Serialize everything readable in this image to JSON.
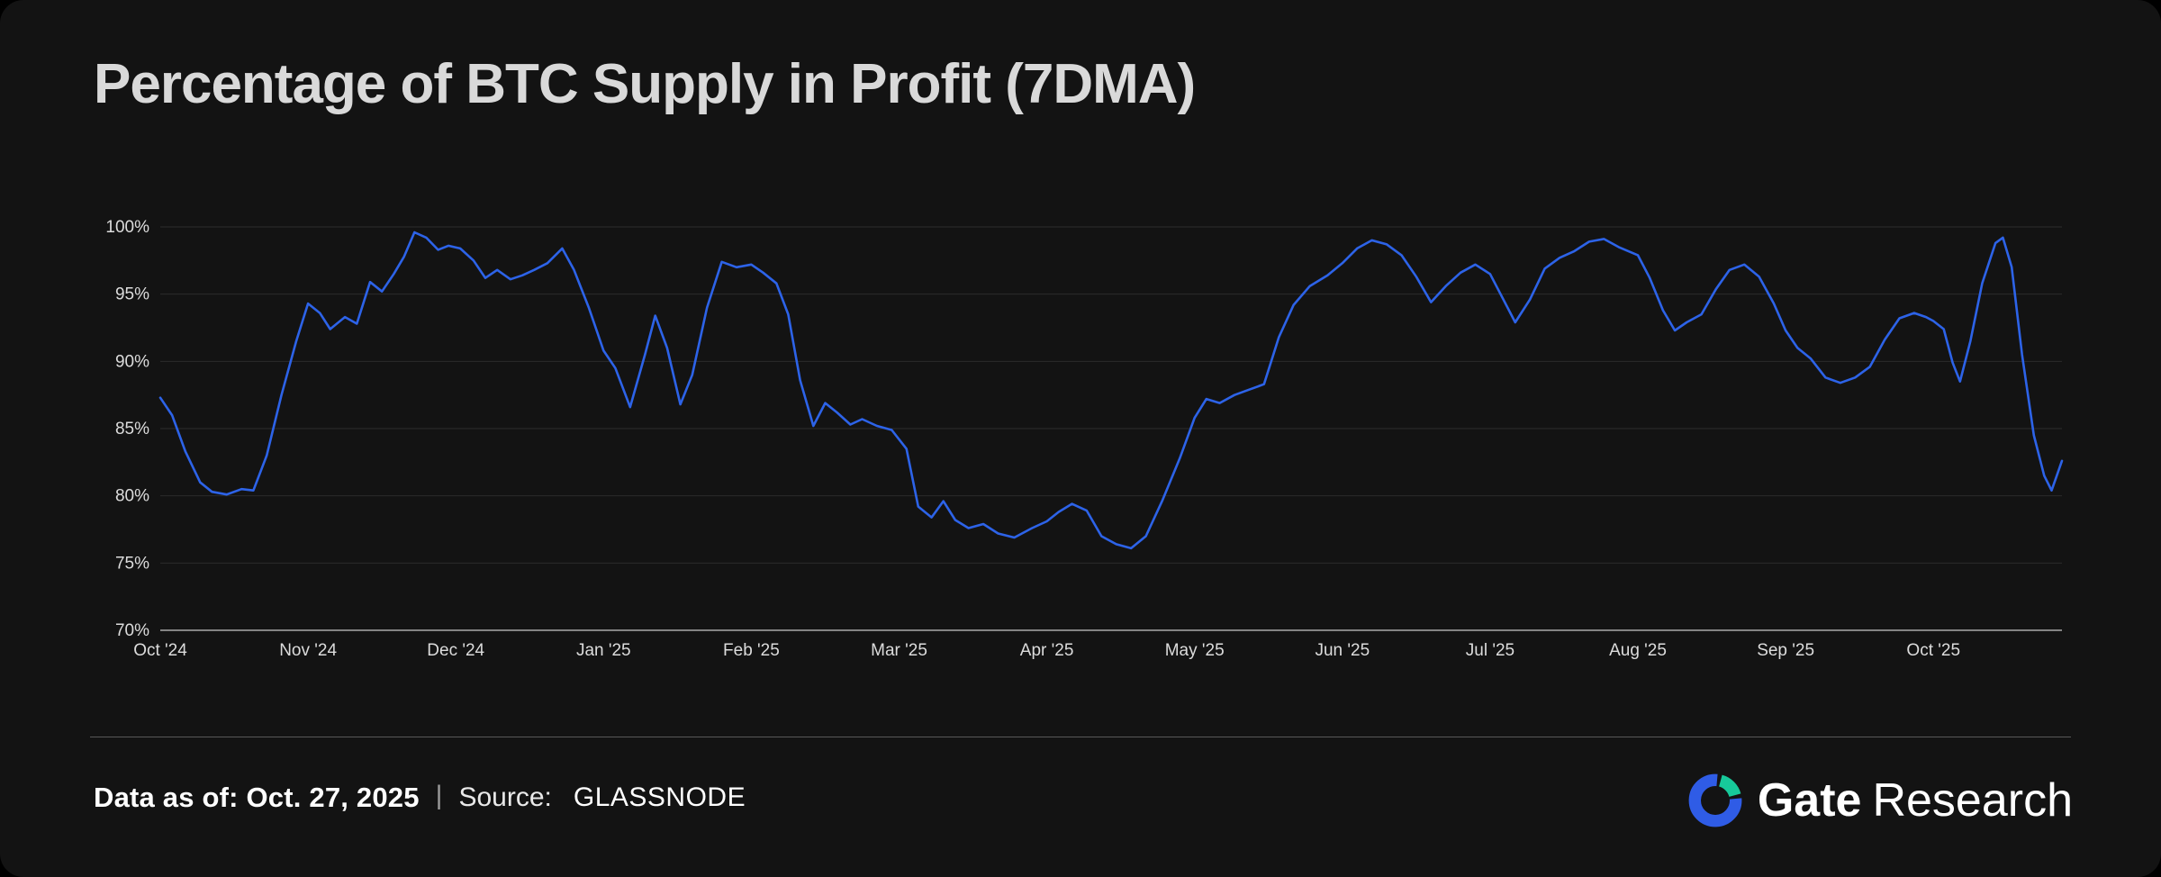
{
  "title": "Percentage of BTC Supply in Profit (7DMA)",
  "footer": {
    "data_as_of": "Data as of: Oct. 27, 2025",
    "separator": "|",
    "source_label": "Source:",
    "source_value": "GLASSNODE"
  },
  "branding": {
    "name_bold": "Gate",
    "name_light": "Research"
  },
  "colors": {
    "background": "#131313",
    "line": "#2d63e8",
    "grid": "#2c2c2c",
    "axis": "#aaaaaa",
    "tick_text": "#dcdcdc",
    "title_text": "#d9d9d9",
    "logo_blue": "#2f5ce6",
    "logo_green": "#17c99a"
  },
  "chart_data": {
    "type": "line",
    "title": "Percentage of BTC Supply in Profit (7DMA)",
    "xlabel": "",
    "ylabel": "",
    "x_unit": "months since Oct 1 2024",
    "xlim": [
      0,
      12.87
    ],
    "ylim": [
      70,
      100
    ],
    "y_ticks": [
      70,
      75,
      80,
      85,
      90,
      95,
      100
    ],
    "y_tick_suffix": "%",
    "x_tick_positions": [
      0,
      1,
      2,
      3,
      4,
      5,
      6,
      7,
      8,
      9,
      10,
      11,
      12
    ],
    "x_tick_labels": [
      "Oct '24",
      "Nov '24",
      "Dec '24",
      "Jan '25",
      "Feb '25",
      "Mar '25",
      "Apr '25",
      "May '25",
      "Jun '25",
      "Jul '25",
      "Aug '25",
      "Sep '25",
      "Oct '25"
    ],
    "grid": "horizontal",
    "legend": "none",
    "series": [
      {
        "name": "BTC Supply in Profit % (7DMA)",
        "points": [
          [
            0.0,
            87.3
          ],
          [
            0.08,
            86.0
          ],
          [
            0.17,
            83.3
          ],
          [
            0.27,
            81.0
          ],
          [
            0.35,
            80.3
          ],
          [
            0.45,
            80.1
          ],
          [
            0.55,
            80.5
          ],
          [
            0.63,
            80.4
          ],
          [
            0.72,
            83.0
          ],
          [
            0.82,
            87.5
          ],
          [
            0.92,
            91.5
          ],
          [
            1.0,
            94.3
          ],
          [
            1.08,
            93.6
          ],
          [
            1.15,
            92.4
          ],
          [
            1.25,
            93.3
          ],
          [
            1.33,
            92.8
          ],
          [
            1.42,
            95.9
          ],
          [
            1.5,
            95.2
          ],
          [
            1.58,
            96.5
          ],
          [
            1.65,
            97.8
          ],
          [
            1.72,
            99.6
          ],
          [
            1.8,
            99.2
          ],
          [
            1.88,
            98.3
          ],
          [
            1.95,
            98.6
          ],
          [
            2.03,
            98.4
          ],
          [
            2.12,
            97.5
          ],
          [
            2.2,
            96.2
          ],
          [
            2.28,
            96.8
          ],
          [
            2.37,
            96.1
          ],
          [
            2.45,
            96.4
          ],
          [
            2.53,
            96.8
          ],
          [
            2.62,
            97.3
          ],
          [
            2.72,
            98.4
          ],
          [
            2.8,
            96.8
          ],
          [
            2.9,
            94.0
          ],
          [
            3.0,
            90.8
          ],
          [
            3.08,
            89.5
          ],
          [
            3.18,
            86.6
          ],
          [
            3.28,
            90.5
          ],
          [
            3.35,
            93.4
          ],
          [
            3.43,
            91.0
          ],
          [
            3.52,
            86.8
          ],
          [
            3.6,
            89.0
          ],
          [
            3.7,
            94.0
          ],
          [
            3.8,
            97.4
          ],
          [
            3.9,
            97.0
          ],
          [
            4.0,
            97.2
          ],
          [
            4.08,
            96.6
          ],
          [
            4.17,
            95.8
          ],
          [
            4.25,
            93.5
          ],
          [
            4.33,
            88.6
          ],
          [
            4.42,
            85.2
          ],
          [
            4.5,
            86.9
          ],
          [
            4.58,
            86.2
          ],
          [
            4.67,
            85.3
          ],
          [
            4.75,
            85.7
          ],
          [
            4.85,
            85.2
          ],
          [
            4.95,
            84.9
          ],
          [
            5.05,
            83.5
          ],
          [
            5.13,
            79.2
          ],
          [
            5.22,
            78.4
          ],
          [
            5.3,
            79.6
          ],
          [
            5.38,
            78.2
          ],
          [
            5.47,
            77.6
          ],
          [
            5.57,
            77.9
          ],
          [
            5.67,
            77.2
          ],
          [
            5.78,
            76.9
          ],
          [
            5.9,
            77.6
          ],
          [
            6.0,
            78.1
          ],
          [
            6.08,
            78.8
          ],
          [
            6.17,
            79.4
          ],
          [
            6.27,
            78.9
          ],
          [
            6.37,
            77.0
          ],
          [
            6.47,
            76.4
          ],
          [
            6.57,
            76.1
          ],
          [
            6.67,
            77.0
          ],
          [
            6.78,
            79.6
          ],
          [
            6.9,
            82.8
          ],
          [
            7.0,
            85.8
          ],
          [
            7.08,
            87.2
          ],
          [
            7.17,
            86.9
          ],
          [
            7.27,
            87.5
          ],
          [
            7.37,
            87.9
          ],
          [
            7.47,
            88.3
          ],
          [
            7.57,
            91.8
          ],
          [
            7.67,
            94.2
          ],
          [
            7.78,
            95.6
          ],
          [
            7.9,
            96.4
          ],
          [
            8.0,
            97.3
          ],
          [
            8.1,
            98.4
          ],
          [
            8.2,
            99.0
          ],
          [
            8.3,
            98.7
          ],
          [
            8.4,
            97.9
          ],
          [
            8.5,
            96.3
          ],
          [
            8.6,
            94.4
          ],
          [
            8.7,
            95.6
          ],
          [
            8.8,
            96.6
          ],
          [
            8.9,
            97.2
          ],
          [
            9.0,
            96.5
          ],
          [
            9.08,
            94.8
          ],
          [
            9.17,
            92.9
          ],
          [
            9.27,
            94.6
          ],
          [
            9.37,
            96.9
          ],
          [
            9.47,
            97.7
          ],
          [
            9.57,
            98.2
          ],
          [
            9.67,
            98.9
          ],
          [
            9.77,
            99.1
          ],
          [
            9.87,
            98.5
          ],
          [
            10.0,
            97.9
          ],
          [
            10.08,
            96.2
          ],
          [
            10.17,
            93.8
          ],
          [
            10.25,
            92.3
          ],
          [
            10.33,
            92.9
          ],
          [
            10.43,
            93.5
          ],
          [
            10.53,
            95.4
          ],
          [
            10.62,
            96.8
          ],
          [
            10.72,
            97.2
          ],
          [
            10.82,
            96.3
          ],
          [
            10.92,
            94.3
          ],
          [
            11.0,
            92.3
          ],
          [
            11.08,
            91.0
          ],
          [
            11.17,
            90.2
          ],
          [
            11.27,
            88.8
          ],
          [
            11.37,
            88.4
          ],
          [
            11.47,
            88.8
          ],
          [
            11.57,
            89.6
          ],
          [
            11.67,
            91.6
          ],
          [
            11.77,
            93.2
          ],
          [
            11.87,
            93.6
          ],
          [
            11.95,
            93.3
          ],
          [
            12.0,
            93.0
          ],
          [
            12.07,
            92.4
          ],
          [
            12.13,
            89.9
          ],
          [
            12.18,
            88.5
          ],
          [
            12.25,
            91.5
          ],
          [
            12.33,
            95.8
          ],
          [
            12.42,
            98.8
          ],
          [
            12.47,
            99.2
          ],
          [
            12.53,
            97.0
          ],
          [
            12.6,
            90.5
          ],
          [
            12.68,
            84.5
          ],
          [
            12.75,
            81.5
          ],
          [
            12.8,
            80.4
          ],
          [
            12.87,
            82.6
          ]
        ]
      }
    ]
  }
}
